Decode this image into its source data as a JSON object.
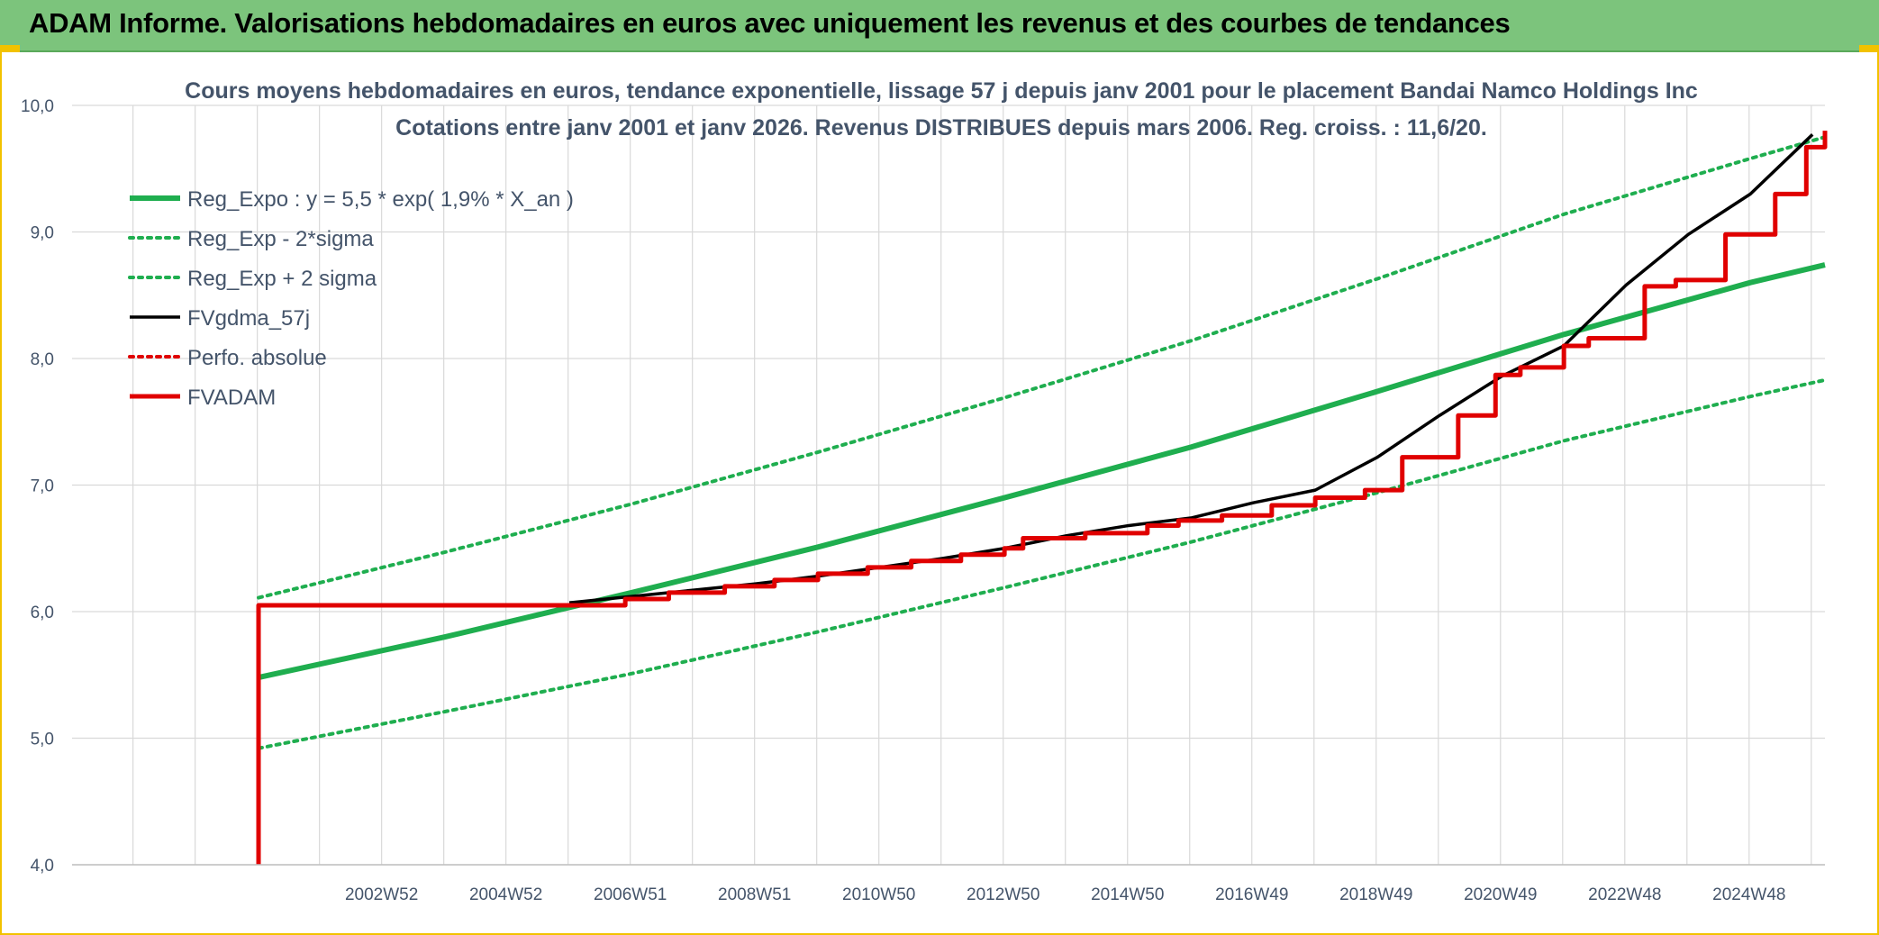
{
  "header": {
    "title": "ADAM Informe. Valorisations hebdomadaires en euros avec uniquement les revenus et des courbes de tendances"
  },
  "colors": {
    "banner": "#7cc47c",
    "frame": "#f2c200",
    "regression": "#1fae4f",
    "adam": "#e00000",
    "smoothed": "#000000",
    "grid": "#d9d9d9",
    "text": "#44546a"
  },
  "chart_data": {
    "type": "line",
    "title": [
      "Cours moyens hebdomadaires en euros, tendance exponentielle, lissage 57 j depuis janv 2001 pour le placement Bandai Namco Holdings Inc",
      "Cotations entre janv 2001 et janv 2026. Revenus DISTRIBUES depuis mars 2006. Reg. croiss. : 11,6/20."
    ],
    "xlabel": "",
    "ylabel": "",
    "ylim": [
      4.0,
      10.0
    ],
    "xlim": [
      1998.0,
      2026.2
    ],
    "y_ticks": [
      "10,0",
      "9,0",
      "8,0",
      "7,0",
      "6,0",
      "5,0",
      "4,0"
    ],
    "x_ticks": [
      {
        "x": 2002.98,
        "label": "2002W52"
      },
      {
        "x": 2004.98,
        "label": "2004W52"
      },
      {
        "x": 2006.98,
        "label": "2006W51"
      },
      {
        "x": 2008.98,
        "label": "2008W51"
      },
      {
        "x": 2010.98,
        "label": "2010W50"
      },
      {
        "x": 2012.98,
        "label": "2012W50"
      },
      {
        "x": 2014.98,
        "label": "2014W50"
      },
      {
        "x": 2016.98,
        "label": "2016W49"
      },
      {
        "x": 2018.98,
        "label": "2018W49"
      },
      {
        "x": 2020.98,
        "label": "2020W49"
      },
      {
        "x": 2022.98,
        "label": "2022W48"
      },
      {
        "x": 2024.98,
        "label": "2024W48"
      }
    ],
    "grid": true,
    "legend_position": "top-left",
    "series": [
      {
        "name": "Reg_Expo : y = 5,5 * exp( 1,9% *  X_an )",
        "style": "solid-thick",
        "color": "#1fae4f",
        "x": [
          2001.0,
          2004.0,
          2007.0,
          2010.0,
          2013.0,
          2016.0,
          2019.0,
          2022.0,
          2025.0,
          2026.2
        ],
        "y": [
          5.48,
          5.8,
          6.15,
          6.51,
          6.9,
          7.3,
          7.74,
          8.19,
          8.6,
          8.74
        ]
      },
      {
        "name": "Reg_Exp - 2*sigma",
        "style": "dotted",
        "color": "#1fae4f",
        "x": [
          2001.0,
          2004.0,
          2007.0,
          2010.0,
          2013.0,
          2016.0,
          2019.0,
          2022.0,
          2025.0,
          2026.2
        ],
        "y": [
          4.92,
          5.21,
          5.51,
          5.84,
          6.19,
          6.55,
          6.94,
          7.35,
          7.7,
          7.83
        ]
      },
      {
        "name": "Reg_Exp + 2 sigma",
        "style": "dotted",
        "color": "#1fae4f",
        "x": [
          2001.0,
          2004.0,
          2007.0,
          2010.0,
          2013.0,
          2016.0,
          2019.0,
          2022.0,
          2025.0,
          2026.2
        ],
        "y": [
          6.11,
          6.47,
          6.85,
          7.26,
          7.69,
          8.14,
          8.63,
          9.14,
          9.58,
          9.75
        ]
      },
      {
        "name": "FVgdma_57j",
        "style": "solid",
        "color": "#000000",
        "x": [
          2006.0,
          2007.0,
          2008.0,
          2009.0,
          2010.0,
          2011.0,
          2012.0,
          2013.0,
          2014.0,
          2015.0,
          2016.0,
          2017.0,
          2018.0,
          2019.0,
          2020.0,
          2021.0,
          2022.0,
          2023.0,
          2024.0,
          2025.0,
          2026.0
        ],
        "y": [
          6.07,
          6.12,
          6.17,
          6.22,
          6.28,
          6.35,
          6.42,
          6.5,
          6.6,
          6.68,
          6.74,
          6.86,
          6.96,
          7.22,
          7.55,
          7.86,
          8.1,
          8.58,
          8.98,
          9.3,
          9.77
        ]
      },
      {
        "name": "Perfo. absolue",
        "style": "dotted",
        "color": "#e00000",
        "x": [],
        "y": []
      },
      {
        "name": "FVADAM",
        "style": "step-thick",
        "color": "#e00000",
        "x": [
          2001.0,
          2001.0,
          2006.2,
          2006.9,
          2007.6,
          2008.5,
          2009.3,
          2010.0,
          2010.8,
          2011.5,
          2012.3,
          2013.0,
          2013.3,
          2014.3,
          2015.3,
          2015.8,
          2016.5,
          2017.3,
          2018.0,
          2018.8,
          2019.4,
          2020.3,
          2020.9,
          2021.3,
          2022.0,
          2022.4,
          2023.3,
          2023.8,
          2024.6,
          2025.4,
          2025.9,
          2026.2
        ],
        "y": [
          4.0,
          6.05,
          6.05,
          6.1,
          6.15,
          6.2,
          6.25,
          6.3,
          6.35,
          6.4,
          6.45,
          6.5,
          6.58,
          6.62,
          6.68,
          6.72,
          6.76,
          6.84,
          6.9,
          6.96,
          7.22,
          7.55,
          7.87,
          7.93,
          8.1,
          8.16,
          8.57,
          8.62,
          8.98,
          9.3,
          9.67,
          9.8
        ]
      }
    ]
  }
}
